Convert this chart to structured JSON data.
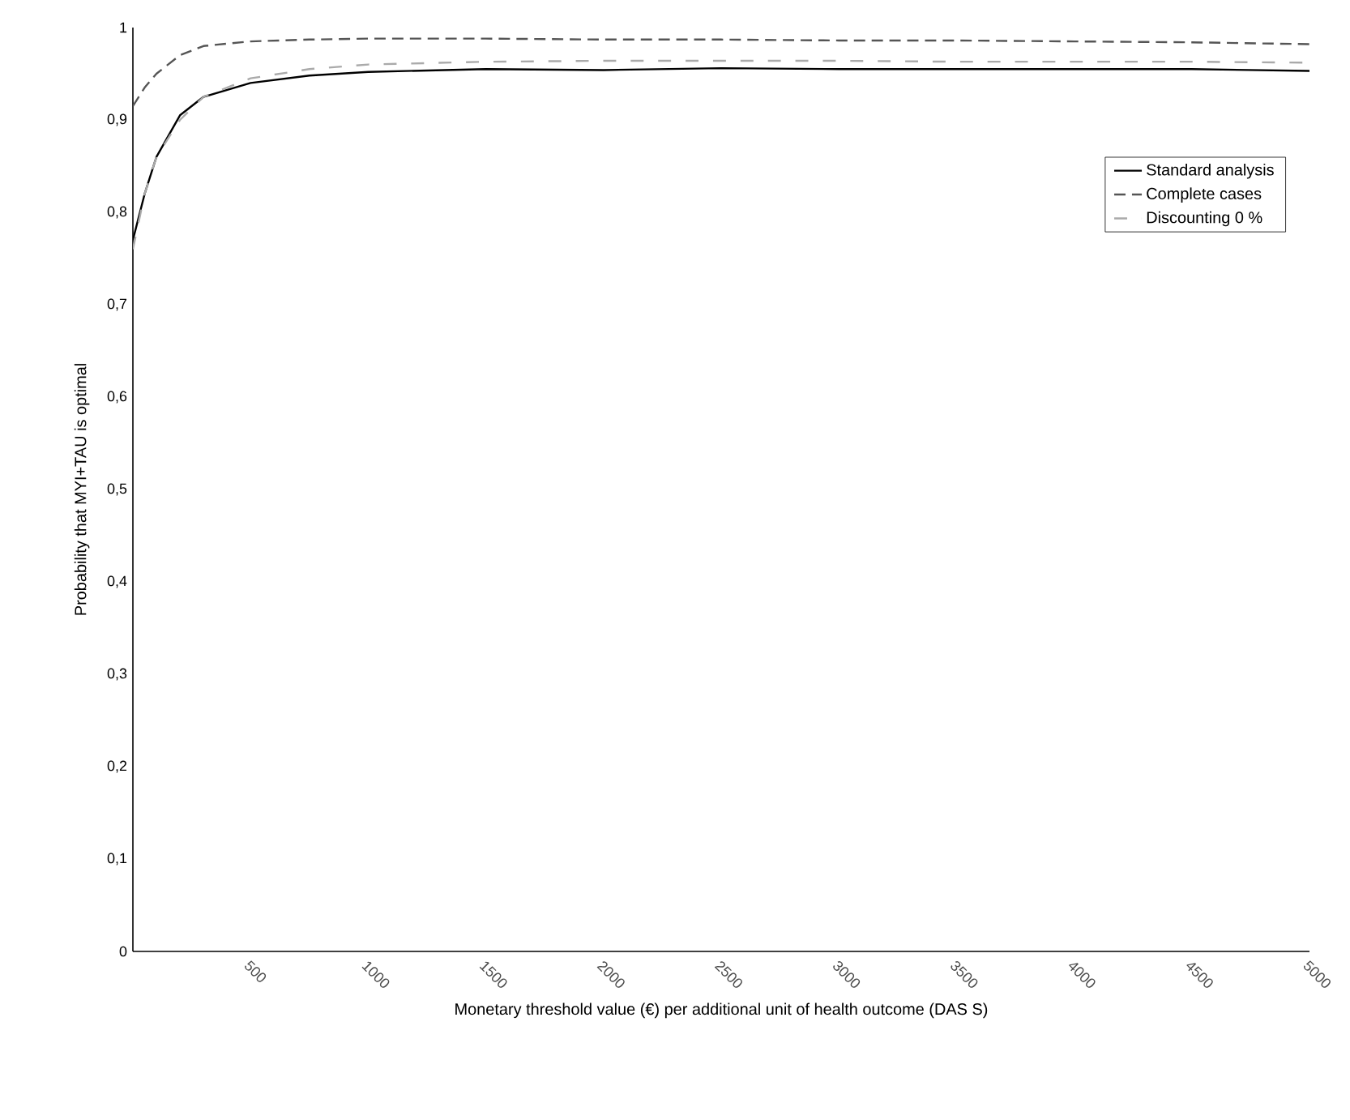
{
  "chart_data": {
    "type": "line",
    "xlabel": "Monetary threshold value (€) per additional unit of health outcome (DAS S)",
    "ylabel": "Probability that MYI+TAU is optimal",
    "x": [
      0,
      50,
      100,
      200,
      300,
      500,
      750,
      1000,
      1500,
      2000,
      2500,
      3000,
      3500,
      4000,
      4500,
      5000
    ],
    "series": [
      {
        "name": "Standard analysis",
        "color": "#000000",
        "line_style": "solid",
        "values": [
          0.77,
          0.82,
          0.86,
          0.905,
          0.925,
          0.94,
          0.948,
          0.952,
          0.955,
          0.954,
          0.956,
          0.955,
          0.955,
          0.955,
          0.955,
          0.953
        ]
      },
      {
        "name": "Complete cases",
        "color": "#555555",
        "line_style": "dashed",
        "values": [
          0.915,
          0.935,
          0.95,
          0.97,
          0.98,
          0.985,
          0.987,
          0.988,
          0.988,
          0.987,
          0.987,
          0.986,
          0.986,
          0.985,
          0.984,
          0.982
        ]
      },
      {
        "name": "Discounting 0 %",
        "color": "#aaaaaa",
        "line_style": "loosely dashed",
        "values": [
          0.76,
          0.82,
          0.86,
          0.9,
          0.925,
          0.945,
          0.955,
          0.96,
          0.963,
          0.964,
          0.964,
          0.964,
          0.963,
          0.963,
          0.963,
          0.962
        ]
      }
    ],
    "xlim": [
      0,
      5000
    ],
    "ylim": [
      0,
      1
    ],
    "xticks": [
      500,
      1000,
      1500,
      2000,
      2500,
      3000,
      3500,
      4000,
      4500,
      5000
    ],
    "yticks": [
      0,
      {
        "value": 0.1,
        "label": "0,1"
      },
      {
        "value": 0.2,
        "label": "0,2"
      },
      {
        "value": 0.3,
        "label": "0,3"
      },
      {
        "value": 0.4,
        "label": "0,4"
      },
      {
        "value": 0.5,
        "label": "0,5"
      },
      {
        "value": 0.6,
        "label": "0,6"
      },
      {
        "value": 0.7,
        "label": "0,7"
      },
      {
        "value": 0.8,
        "label": "0,8"
      },
      {
        "value": 0.9,
        "label": "0,9"
      },
      1
    ],
    "grid": false,
    "legend": "top right",
    "marker": "none"
  }
}
